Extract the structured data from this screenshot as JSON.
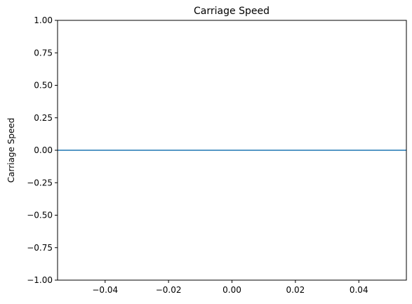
{
  "chart_data": {
    "type": "line",
    "title": "Carriage Speed",
    "xlabel": "",
    "ylabel": "Carriage Speed",
    "xlim": [
      -0.055,
      0.055
    ],
    "ylim": [
      -1.0,
      1.0
    ],
    "x_ticks": [
      -0.04,
      -0.02,
      0.0,
      0.02,
      0.04
    ],
    "x_tick_labels": [
      "−0.04",
      "−0.02",
      "0.00",
      "0.02",
      "0.04"
    ],
    "y_ticks": [
      1.0,
      0.75,
      0.5,
      0.25,
      0.0,
      -0.25,
      -0.5,
      -0.75,
      -1.0
    ],
    "y_tick_labels": [
      "1.00",
      "0.75",
      "0.50",
      "0.25",
      "0.00",
      "−0.25",
      "−0.50",
      "−0.75",
      "−1.00"
    ],
    "grid": false,
    "series": [
      {
        "x": [
          -0.055,
          0.055
        ],
        "y": [
          0,
          0
        ],
        "color": "#1f77b4"
      }
    ]
  }
}
